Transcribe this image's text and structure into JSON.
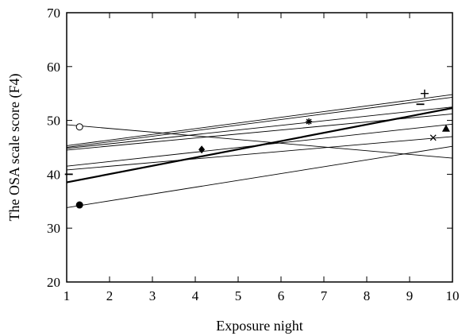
{
  "chart_data": {
    "type": "line",
    "title": "",
    "xlabel": "Exposure night",
    "ylabel": "The OSA scale score (F4)",
    "xlim": [
      1,
      10
    ],
    "ylim": [
      20,
      70
    ],
    "xticks": [
      "1",
      "2",
      "3",
      "4",
      "5",
      "6",
      "7",
      "8",
      "9",
      "10"
    ],
    "yticks": [
      "20",
      "30",
      "40",
      "50",
      "60",
      "70"
    ],
    "grid": false,
    "legend": "none",
    "series": [
      {
        "x": [
          1,
          10
        ],
        "y": [
          45.3,
          54.8
        ],
        "width": "thin"
      },
      {
        "x": [
          1,
          10
        ],
        "y": [
          45.0,
          54.3
        ],
        "width": "thin"
      },
      {
        "x": [
          1,
          10
        ],
        "y": [
          44.8,
          52.5
        ],
        "width": "thin"
      },
      {
        "x": [
          1,
          10
        ],
        "y": [
          44.5,
          51.2
        ],
        "width": "thin"
      },
      {
        "x": [
          1,
          10
        ],
        "y": [
          38.5,
          52.3
        ],
        "width": "bold"
      },
      {
        "x": [
          1,
          10
        ],
        "y": [
          41.5,
          49.3
        ],
        "width": "thin"
      },
      {
        "x": [
          1,
          10
        ],
        "y": [
          40.8,
          47.0
        ],
        "width": "thin"
      },
      {
        "x": [
          1,
          10
        ],
        "y": [
          49.2,
          43.0
        ],
        "width": "thin"
      },
      {
        "x": [
          1,
          10
        ],
        "y": [
          33.8,
          45.2
        ],
        "width": "thin"
      }
    ],
    "markers": [
      {
        "x": 1.05,
        "y": 40.0,
        "symbol": "dash"
      },
      {
        "x": 1.3,
        "y": 48.8,
        "symbol": "open-circle"
      },
      {
        "x": 1.3,
        "y": 34.3,
        "symbol": "filled-circle"
      },
      {
        "x": 4.15,
        "y": 44.6,
        "symbol": "filled-diamond"
      },
      {
        "x": 6.65,
        "y": 49.8,
        "symbol": "asterisk"
      },
      {
        "x": 9.35,
        "y": 55.0,
        "symbol": "plus"
      },
      {
        "x": 9.25,
        "y": 53.0,
        "symbol": "dash"
      },
      {
        "x": 9.55,
        "y": 46.8,
        "symbol": "cross"
      },
      {
        "x": 9.85,
        "y": 48.5,
        "symbol": "filled-triangle"
      }
    ]
  }
}
